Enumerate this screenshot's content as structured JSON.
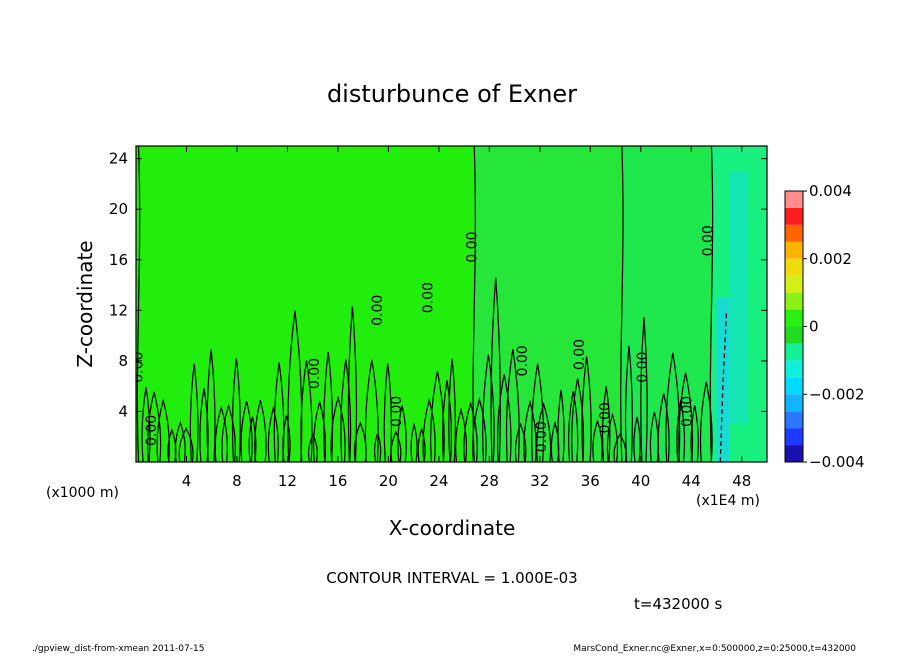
{
  "chart_data": {
    "type": "heatmap",
    "title": "disturbunce of Exner",
    "xlabel": "X-coordinate",
    "ylabel": "Z-coordinate",
    "x_unit": "(x1E4 m)",
    "y_unit": "(x1000 m)",
    "xlim": [
      0,
      50
    ],
    "ylim": [
      0,
      25
    ],
    "x_ticks": [
      "4",
      "8",
      "12",
      "16",
      "20",
      "24",
      "28",
      "32",
      "36",
      "40",
      "44",
      "48"
    ],
    "y_ticks": [
      "4",
      "8",
      "12",
      "16",
      "20",
      "24"
    ],
    "colorbar": {
      "range": [
        -0.004,
        0.004
      ],
      "tick_labels": [
        "0.004",
        "0.002",
        "0",
        "−0.002",
        "−0.004"
      ],
      "tick_values": [
        0.004,
        0.002,
        0,
        -0.002,
        -0.004
      ],
      "levels": [
        {
          "v": -0.004,
          "color": "#7a0fa0"
        },
        {
          "v": -0.0035,
          "color": "#1a10b0"
        },
        {
          "v": -0.003,
          "color": "#1e3cff"
        },
        {
          "v": -0.0025,
          "color": "#2a78ff"
        },
        {
          "v": -0.002,
          "color": "#10b4ff"
        },
        {
          "v": -0.0015,
          "color": "#00dcff"
        },
        {
          "v": -0.001,
          "color": "#10eedc"
        },
        {
          "v": -0.0005,
          "color": "#14f096"
        },
        {
          "v": 0,
          "color": "#22dc22"
        },
        {
          "v": 0.0005,
          "color": "#28f010"
        },
        {
          "v": 0.001,
          "color": "#8cf014"
        },
        {
          "v": 0.0015,
          "color": "#d2f014"
        },
        {
          "v": 0.002,
          "color": "#f0dc0a"
        },
        {
          "v": 0.0025,
          "color": "#ffb400"
        },
        {
          "v": 0.003,
          "color": "#ff6400"
        },
        {
          "v": 0.0035,
          "color": "#ff1e1e"
        },
        {
          "v": 0.004,
          "color": "#ff8c8c"
        }
      ]
    },
    "background_color": "#22ee0e",
    "regions": [
      {
        "x": [
          26.8,
          38.5
        ],
        "color": "#26e63a",
        "value": -0.0003
      },
      {
        "x": [
          38.5,
          45.6
        ],
        "color": "#1ee84e",
        "value": -0.0005
      },
      {
        "x": [
          45.6,
          50.0
        ],
        "color": "#18f080",
        "value": -0.0008
      },
      {
        "x": [
          46.0,
          47.0
        ],
        "z": [
          0,
          13
        ],
        "color": "#18dcd4",
        "value": -0.0015
      },
      {
        "x": [
          47.0,
          48.5
        ],
        "z": [
          3,
          23
        ],
        "color": "#16e6b4",
        "value": -0.0012
      }
    ],
    "contour_labels": [
      {
        "text": "0.00",
        "x": 0.5,
        "z": 7.5,
        "rotate": -90
      },
      {
        "text": "0.00",
        "x": 1.6,
        "z": 2.5,
        "rotate": -90
      },
      {
        "text": "0.00",
        "x": 14.5,
        "z": 7.0,
        "rotate": -90
      },
      {
        "text": "0.00",
        "x": 19.5,
        "z": 12.0,
        "rotate": -90
      },
      {
        "text": "0.00",
        "x": 21.0,
        "z": 4.0,
        "rotate": -90
      },
      {
        "text": "0.00",
        "x": 23.5,
        "z": 13.0,
        "rotate": -90
      },
      {
        "text": "0.00",
        "x": 27.0,
        "z": 17.0,
        "rotate": -90
      },
      {
        "text": "0.00",
        "x": 31.0,
        "z": 8.0,
        "rotate": -90
      },
      {
        "text": "0.00",
        "x": 32.5,
        "z": 2.0,
        "rotate": -90
      },
      {
        "text": "0.00",
        "x": 35.5,
        "z": 8.5,
        "rotate": -90
      },
      {
        "text": "0.00",
        "x": 37.5,
        "z": 3.5,
        "rotate": -90
      },
      {
        "text": "0.00",
        "x": 40.5,
        "z": 7.5,
        "rotate": -90
      },
      {
        "text": "0.00",
        "x": 44.0,
        "z": 4.0,
        "rotate": -90
      },
      {
        "text": "0.00",
        "x": 45.7,
        "z": 17.5,
        "rotate": -90
      }
    ],
    "contour_interval": "CONTOUR INTERVAL = 1.000E-03",
    "time_label": "t=432000 s"
  },
  "footer": {
    "left": "./gpview_dist-from-xmean  2011-07-15",
    "right": "MarsCond_Exner.nc@Exner,x=0:500000,z=0:25000,t=432000"
  }
}
